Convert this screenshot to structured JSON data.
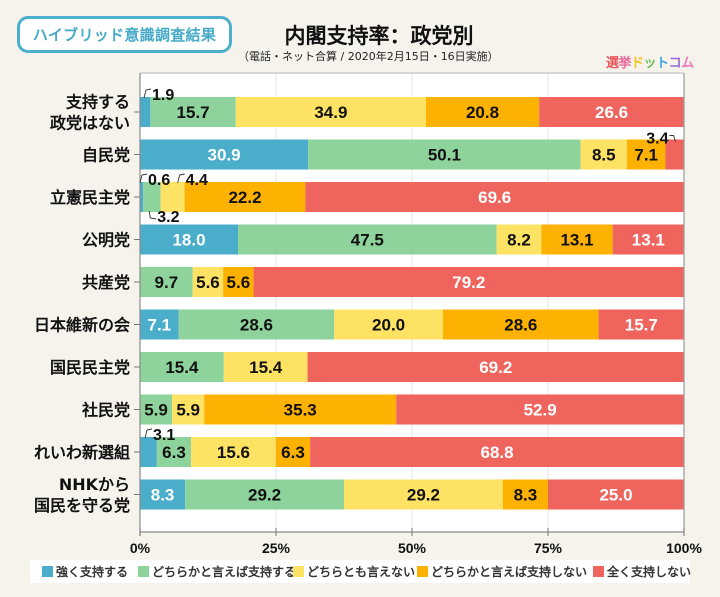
{
  "badge": {
    "label": "ハイブリッド意識調査結果"
  },
  "header": {
    "title": "内閣支持率：政党別",
    "subtitle": "（電話・ネット合算 / 2020年2月15日・16日実施）"
  },
  "logo": {
    "text": "選挙ドットコム",
    "colors": [
      "#e8585a",
      "#ea6a9a",
      "#f4c21c",
      "#6cbf57",
      "#3aa7dd",
      "#9c6ad0",
      "#ee79b7"
    ]
  },
  "chart_data": {
    "type": "bar",
    "orientation": "horizontal",
    "stacked": true,
    "title": "内閣支持率：政党別",
    "subtitle": "（電話・ネット合算 / 2020年2月15日・16日実施）",
    "xlabel": "",
    "ylabel": "",
    "xlim": [
      0,
      100
    ],
    "x_tick_values": [
      0,
      25,
      50,
      75,
      100
    ],
    "x_ticks": [
      "0%",
      "25%",
      "50%",
      "75%",
      "100%"
    ],
    "grid": true,
    "legend": "bottom",
    "categories": [
      "支持する\n政党はない",
      "自民党",
      "立憲民主党",
      "公明党",
      "共産党",
      "日本維新の会",
      "国民民主党",
      "社民党",
      "れいわ新選組",
      "NHKから\n国民を守る党"
    ],
    "series": [
      {
        "name": "強く支持する",
        "color": "#4aaecb",
        "label_color": "#ffffff",
        "values": [
          1.9,
          30.9,
          0.6,
          18.0,
          0,
          7.1,
          0,
          0,
          3.1,
          8.3
        ]
      },
      {
        "name": "どちらかと言えば支持する",
        "color": "#8dd39b",
        "label_color": "#111111",
        "values": [
          15.7,
          50.1,
          3.2,
          47.5,
          9.7,
          28.6,
          15.4,
          5.9,
          6.3,
          29.2
        ]
      },
      {
        "name": "どちらとも言えない",
        "color": "#fde263",
        "label_color": "#111111",
        "values": [
          34.9,
          8.5,
          4.4,
          8.2,
          5.6,
          20.0,
          15.4,
          5.9,
          15.6,
          29.2
        ]
      },
      {
        "name": "どちらかと言えば支持しない",
        "color": "#fdb101",
        "label_color": "#111111",
        "values": [
          20.8,
          7.1,
          22.2,
          13.1,
          5.6,
          28.6,
          0,
          35.3,
          6.3,
          8.3
        ]
      },
      {
        "name": "全く支持しない",
        "color": "#f0645e",
        "label_color": "#ffffff",
        "values": [
          26.6,
          3.4,
          69.6,
          13.1,
          79.2,
          15.7,
          69.2,
          52.9,
          68.8,
          25.0
        ]
      }
    ]
  }
}
